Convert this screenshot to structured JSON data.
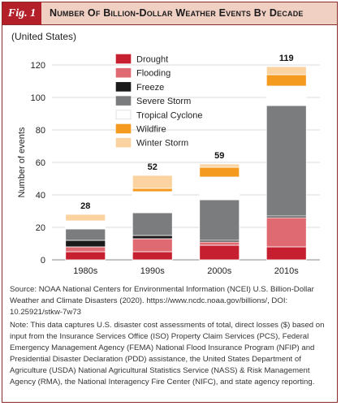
{
  "header": {
    "fig_label": "Fig. 1",
    "title": "Number Of Billion-Dollar Weather Events By Decade"
  },
  "subtitle": "(United States)",
  "chart_data": {
    "type": "bar",
    "stacked": true,
    "categories": [
      "1980s",
      "1990s",
      "2000s",
      "2010s"
    ],
    "series": [
      {
        "name": "Drought",
        "color": "#c62030",
        "values": [
          5,
          5,
          9,
          8
        ]
      },
      {
        "name": "Flooding",
        "color": "#e06a72",
        "values": [
          3,
          8,
          2,
          18
        ]
      },
      {
        "name": "Freeze",
        "color": "#1a1a1a",
        "values": [
          4,
          2,
          1,
          1
        ]
      },
      {
        "name": "Severe Storm",
        "color": "#7a7c7e",
        "values": [
          7,
          14,
          25,
          68
        ]
      },
      {
        "name": "Tropical Cyclone",
        "color": "#ffffff",
        "values": [
          5,
          13,
          14,
          12
        ]
      },
      {
        "name": "Wildfire",
        "color": "#f49a1e",
        "values": [
          0,
          2,
          6,
          7
        ]
      },
      {
        "name": "Winter Storm",
        "color": "#fbd3a0",
        "values": [
          4,
          8,
          2,
          5
        ]
      }
    ],
    "totals": [
      28,
      52,
      59,
      119
    ],
    "ylabel": "Number of events",
    "ylim": [
      0,
      120
    ],
    "yticks": [
      0,
      20,
      40,
      60,
      80,
      100,
      120
    ],
    "grid": true,
    "legend_placement": "top-left"
  },
  "source_text": "Source: NOAA National Centers for Environmental Information (NCEI) U.S. Billion-Dollar Weather and Climate Disasters (2020). https://www.ncdc.noaa.gov/billions/, DOI: 10.25921/stkw-7w73",
  "note_text": "Note: This data captures U.S. disaster cost assessments of total, direct losses ($) based on input from the Insurance Services Office (ISO) Property Claim Services (PCS), Federal Emergency Management Agency (FEMA) National Flood Insurance Program (NFIP) and Presidential Disaster Declaration (PDD) assistance, the United States Department of Agriculture (USDA) National Agricultural Statistics Service (NASS) & Risk Management Agency (RMA), the National Interagency Fire Center (NIFC), and state agency reporting."
}
